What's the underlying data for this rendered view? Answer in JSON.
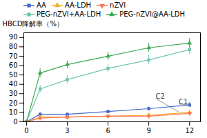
{
  "chart_data": {
    "type": "line",
    "x": [
      0,
      1,
      3,
      6,
      9,
      12
    ],
    "ylabel": "HBCD降解率（%）",
    "series": [
      {
        "name": "AA",
        "marker": "square",
        "values": [
          0,
          8,
          8,
          11,
          14,
          18
        ],
        "yerr": [
          0,
          1.5,
          1.0,
          1.5,
          2.0,
          2.5
        ]
      },
      {
        "name": "AA-LDH",
        "marker": "triangle",
        "values": [
          0,
          5,
          5,
          6,
          7,
          10
        ],
        "yerr": [
          0,
          0.8,
          0.8,
          0.8,
          1.0,
          1.5
        ]
      },
      {
        "name": "nZVI",
        "marker": "triangle-down",
        "values": [
          0,
          4,
          5,
          6,
          6,
          9
        ],
        "yerr": [
          0,
          0.8,
          0.8,
          0.8,
          0.8,
          1.0
        ]
      },
      {
        "name": "PEG-nZVI+AA-LDH",
        "marker": "square",
        "values": [
          0,
          35,
          45,
          57,
          66,
          77
        ],
        "yerr": [
          0,
          4.0,
          4.0,
          4.0,
          5.0,
          5.0
        ]
      },
      {
        "name": "PEG-nZVI@AA-LDH",
        "marker": "triangle",
        "values": [
          0,
          52,
          61,
          70,
          79,
          84
        ],
        "yerr": [
          0,
          5.0,
          4.0,
          4.5,
          5.0,
          5.0
        ]
      }
    ],
    "xlim": [
      -0.2,
      12.8
    ],
    "xticks": [
      0,
      3,
      6,
      9,
      12
    ],
    "ylim": [
      0,
      95
    ],
    "yticks": [
      0,
      10,
      20,
      30,
      40,
      50,
      60,
      70,
      80,
      90
    ],
    "grid": false,
    "legend": "top",
    "annotations": [
      {
        "text": "C1",
        "x": 11.2,
        "y": 19,
        "point_x": 12,
        "point_y": 18
      },
      {
        "text": "C2",
        "x": 9.5,
        "y": 25,
        "point_x": 11.2,
        "point_y": 10.5
      }
    ]
  }
}
